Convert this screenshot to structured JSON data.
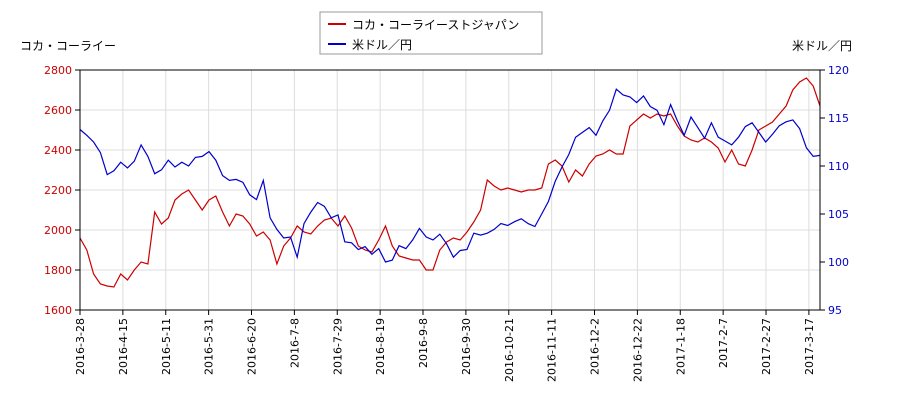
{
  "chart_data": {
    "type": "line",
    "title": "",
    "legend": {
      "placement": "top-center",
      "entries": [
        {
          "label": "コカ・コーライーストジャパン",
          "color": "#cc0000"
        },
        {
          "label": "米ドル／円",
          "color": "#0000cc"
        }
      ]
    },
    "y_left": {
      "label": "コカ・コーライー",
      "min": 1600,
      "max": 2800,
      "ticks": [
        1600,
        1800,
        2000,
        2200,
        2400,
        2600,
        2800
      ]
    },
    "y_right": {
      "label": "米ドル／円",
      "min": 95,
      "max": 120,
      "ticks": [
        95,
        100,
        105,
        110,
        115,
        120
      ]
    },
    "x_tick_labels": [
      "2016-3-28",
      "2016-4-15",
      "2016-5-11",
      "2016-5-31",
      "2016-6-20",
      "2016-7-8",
      "2016-7-29",
      "2016-8-19",
      "2016-9-8",
      "2016-9-30",
      "2016-10-21",
      "2016-11-11",
      "2016-12-2",
      "2016-12-22",
      "2017-1-18",
      "2017-2-7",
      "2017-2-27",
      "2017-3-17"
    ],
    "grid": true,
    "series": [
      {
        "name": "コカ・コーライーストジャパン",
        "axis": "left",
        "color": "#cc0000",
        "points": [
          [
            0,
            1960
          ],
          [
            1,
            1900
          ],
          [
            2,
            1780
          ],
          [
            3,
            1730
          ],
          [
            4,
            1720
          ],
          [
            5,
            1715
          ],
          [
            6,
            1780
          ],
          [
            7,
            1750
          ],
          [
            8,
            1800
          ],
          [
            9,
            1840
          ],
          [
            10,
            1830
          ],
          [
            11,
            2090
          ],
          [
            12,
            2030
          ],
          [
            13,
            2060
          ],
          [
            14,
            2150
          ],
          [
            15,
            2180
          ],
          [
            16,
            2200
          ],
          [
            17,
            2150
          ],
          [
            18,
            2100
          ],
          [
            19,
            2150
          ],
          [
            20,
            2170
          ],
          [
            21,
            2090
          ],
          [
            22,
            2020
          ],
          [
            23,
            2080
          ],
          [
            24,
            2070
          ],
          [
            25,
            2030
          ],
          [
            26,
            1970
          ],
          [
            27,
            1990
          ],
          [
            28,
            1950
          ],
          [
            29,
            1830
          ],
          [
            30,
            1920
          ],
          [
            31,
            1960
          ],
          [
            32,
            2020
          ],
          [
            33,
            1990
          ],
          [
            34,
            1980
          ],
          [
            35,
            2020
          ],
          [
            36,
            2050
          ],
          [
            37,
            2060
          ],
          [
            38,
            2020
          ],
          [
            39,
            2070
          ],
          [
            40,
            2010
          ],
          [
            41,
            1920
          ],
          [
            42,
            1900
          ],
          [
            43,
            1890
          ],
          [
            44,
            1950
          ],
          [
            45,
            2020
          ],
          [
            46,
            1920
          ],
          [
            47,
            1870
          ],
          [
            48,
            1860
          ],
          [
            49,
            1850
          ],
          [
            50,
            1850
          ],
          [
            51,
            1800
          ],
          [
            52,
            1800
          ],
          [
            53,
            1900
          ],
          [
            54,
            1940
          ],
          [
            55,
            1960
          ],
          [
            56,
            1950
          ],
          [
            57,
            1990
          ],
          [
            58,
            2040
          ],
          [
            59,
            2100
          ],
          [
            60,
            2250
          ],
          [
            61,
            2220
          ],
          [
            62,
            2200
          ],
          [
            63,
            2210
          ],
          [
            64,
            2200
          ],
          [
            65,
            2190
          ],
          [
            66,
            2200
          ],
          [
            67,
            2200
          ],
          [
            68,
            2210
          ],
          [
            69,
            2330
          ],
          [
            70,
            2350
          ],
          [
            71,
            2320
          ],
          [
            72,
            2240
          ],
          [
            73,
            2300
          ],
          [
            74,
            2270
          ],
          [
            75,
            2330
          ],
          [
            76,
            2370
          ],
          [
            77,
            2380
          ],
          [
            78,
            2400
          ],
          [
            79,
            2380
          ],
          [
            80,
            2380
          ],
          [
            81,
            2520
          ],
          [
            82,
            2550
          ],
          [
            83,
            2580
          ],
          [
            84,
            2560
          ],
          [
            85,
            2580
          ],
          [
            86,
            2570
          ],
          [
            87,
            2580
          ],
          [
            88,
            2520
          ],
          [
            89,
            2470
          ],
          [
            90,
            2450
          ],
          [
            91,
            2440
          ],
          [
            92,
            2460
          ],
          [
            93,
            2440
          ],
          [
            94,
            2410
          ],
          [
            95,
            2340
          ],
          [
            96,
            2400
          ],
          [
            97,
            2330
          ],
          [
            98,
            2320
          ],
          [
            99,
            2400
          ],
          [
            100,
            2500
          ],
          [
            101,
            2520
          ],
          [
            102,
            2540
          ],
          [
            103,
            2580
          ],
          [
            104,
            2620
          ],
          [
            105,
            2700
          ],
          [
            106,
            2740
          ],
          [
            107,
            2760
          ],
          [
            108,
            2720
          ],
          [
            109,
            2620
          ]
        ]
      },
      {
        "name": "米ドル／円",
        "axis": "right",
        "color": "#0000cc",
        "points": [
          [
            0,
            113.8
          ],
          [
            1,
            113.2
          ],
          [
            2,
            112.5
          ],
          [
            3,
            111.4
          ],
          [
            4,
            109.1
          ],
          [
            5,
            109.5
          ],
          [
            6,
            110.4
          ],
          [
            7,
            109.8
          ],
          [
            8,
            110.5
          ],
          [
            9,
            112.2
          ],
          [
            10,
            111.0
          ],
          [
            11,
            109.2
          ],
          [
            12,
            109.6
          ],
          [
            13,
            110.6
          ],
          [
            14,
            109.9
          ],
          [
            15,
            110.4
          ],
          [
            16,
            110.0
          ],
          [
            17,
            110.9
          ],
          [
            18,
            111.0
          ],
          [
            19,
            111.5
          ],
          [
            20,
            110.6
          ],
          [
            21,
            109.0
          ],
          [
            22,
            108.5
          ],
          [
            23,
            108.6
          ],
          [
            24,
            108.3
          ],
          [
            25,
            107.0
          ],
          [
            26,
            106.5
          ],
          [
            27,
            108.5
          ],
          [
            28,
            104.6
          ],
          [
            29,
            103.4
          ],
          [
            30,
            102.5
          ],
          [
            31,
            102.6
          ],
          [
            32,
            100.5
          ],
          [
            33,
            104.0
          ],
          [
            34,
            105.2
          ],
          [
            35,
            106.2
          ],
          [
            36,
            105.8
          ],
          [
            37,
            104.6
          ],
          [
            38,
            104.9
          ],
          [
            39,
            102.1
          ],
          [
            40,
            102.0
          ],
          [
            41,
            101.3
          ],
          [
            42,
            101.6
          ],
          [
            43,
            100.8
          ],
          [
            44,
            101.4
          ],
          [
            45,
            100.0
          ],
          [
            46,
            100.2
          ],
          [
            47,
            101.7
          ],
          [
            48,
            101.4
          ],
          [
            49,
            102.3
          ],
          [
            50,
            103.5
          ],
          [
            51,
            102.6
          ],
          [
            52,
            102.3
          ],
          [
            53,
            102.9
          ],
          [
            54,
            101.9
          ],
          [
            55,
            100.5
          ],
          [
            56,
            101.2
          ],
          [
            57,
            101.3
          ],
          [
            58,
            103.0
          ],
          [
            59,
            102.8
          ],
          [
            60,
            103.0
          ],
          [
            61,
            103.4
          ],
          [
            62,
            104.0
          ],
          [
            63,
            103.8
          ],
          [
            64,
            104.2
          ],
          [
            65,
            104.5
          ],
          [
            66,
            104.0
          ],
          [
            67,
            103.7
          ],
          [
            68,
            105.0
          ],
          [
            69,
            106.3
          ],
          [
            70,
            108.4
          ],
          [
            71,
            109.9
          ],
          [
            72,
            111.2
          ],
          [
            73,
            113.0
          ],
          [
            74,
            113.5
          ],
          [
            75,
            114.0
          ],
          [
            76,
            113.2
          ],
          [
            77,
            114.7
          ],
          [
            78,
            115.8
          ],
          [
            79,
            118.0
          ],
          [
            80,
            117.4
          ],
          [
            81,
            117.2
          ],
          [
            82,
            116.6
          ],
          [
            83,
            117.3
          ],
          [
            84,
            116.2
          ],
          [
            85,
            115.8
          ],
          [
            86,
            114.3
          ],
          [
            87,
            116.4
          ],
          [
            88,
            114.7
          ],
          [
            89,
            113.2
          ],
          [
            90,
            115.1
          ],
          [
            91,
            114.0
          ],
          [
            92,
            112.9
          ],
          [
            93,
            114.5
          ],
          [
            94,
            113.0
          ],
          [
            95,
            112.6
          ],
          [
            96,
            112.2
          ],
          [
            97,
            113.0
          ],
          [
            98,
            114.1
          ],
          [
            99,
            114.5
          ],
          [
            100,
            113.5
          ],
          [
            101,
            112.5
          ],
          [
            102,
            113.3
          ],
          [
            103,
            114.2
          ],
          [
            104,
            114.6
          ],
          [
            105,
            114.8
          ],
          [
            106,
            113.9
          ],
          [
            107,
            111.9
          ],
          [
            108,
            111.0
          ],
          [
            109,
            111.1
          ]
        ]
      }
    ]
  }
}
